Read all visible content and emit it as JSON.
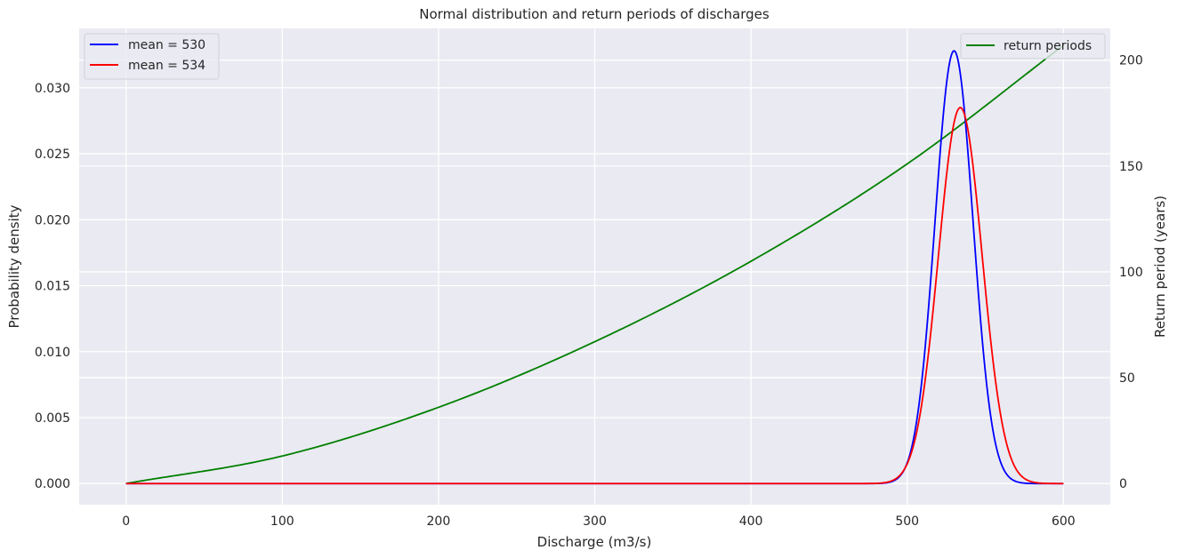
{
  "chart_data": {
    "type": "line",
    "title": "Normal distribution and return periods of discharges",
    "xlabel": "Discharge (m3/s)",
    "ylabel_left": "Probability density",
    "ylabel_right": "Return period (years)",
    "xlim": [
      -30,
      630
    ],
    "ylim_left": [
      -0.0016,
      0.0345
    ],
    "ylim_right": [
      -10,
      215
    ],
    "x_ticks": [
      0,
      100,
      200,
      300,
      400,
      500,
      600
    ],
    "y_left_ticks": [
      "0.000",
      "0.005",
      "0.010",
      "0.015",
      "0.020",
      "0.025",
      "0.030"
    ],
    "y_right_ticks": [
      0,
      50,
      100,
      150,
      200
    ],
    "grid": true,
    "series": [
      {
        "name": "mean = 530",
        "axis": "left",
        "color": "#0000ff",
        "distribution": "normal",
        "mean": 530,
        "peak_density": 0.0328,
        "x_range": [
          0,
          600
        ]
      },
      {
        "name": "mean = 534",
        "axis": "left",
        "color": "#ff0000",
        "distribution": "normal",
        "mean": 534,
        "peak_density": 0.0285,
        "x_range": [
          0,
          600
        ]
      },
      {
        "name": "return periods",
        "axis": "right",
        "color": "#008000",
        "x": [
          0,
          100,
          200,
          300,
          400,
          500,
          600
        ],
        "values": [
          0,
          13,
          36,
          67,
          105,
          151,
          207
        ]
      }
    ],
    "legend_left": "upper-left",
    "legend_right": "upper-right",
    "colors": {
      "background": "#eaeaf2",
      "grid": "#ffffff",
      "text": "#262626"
    }
  }
}
